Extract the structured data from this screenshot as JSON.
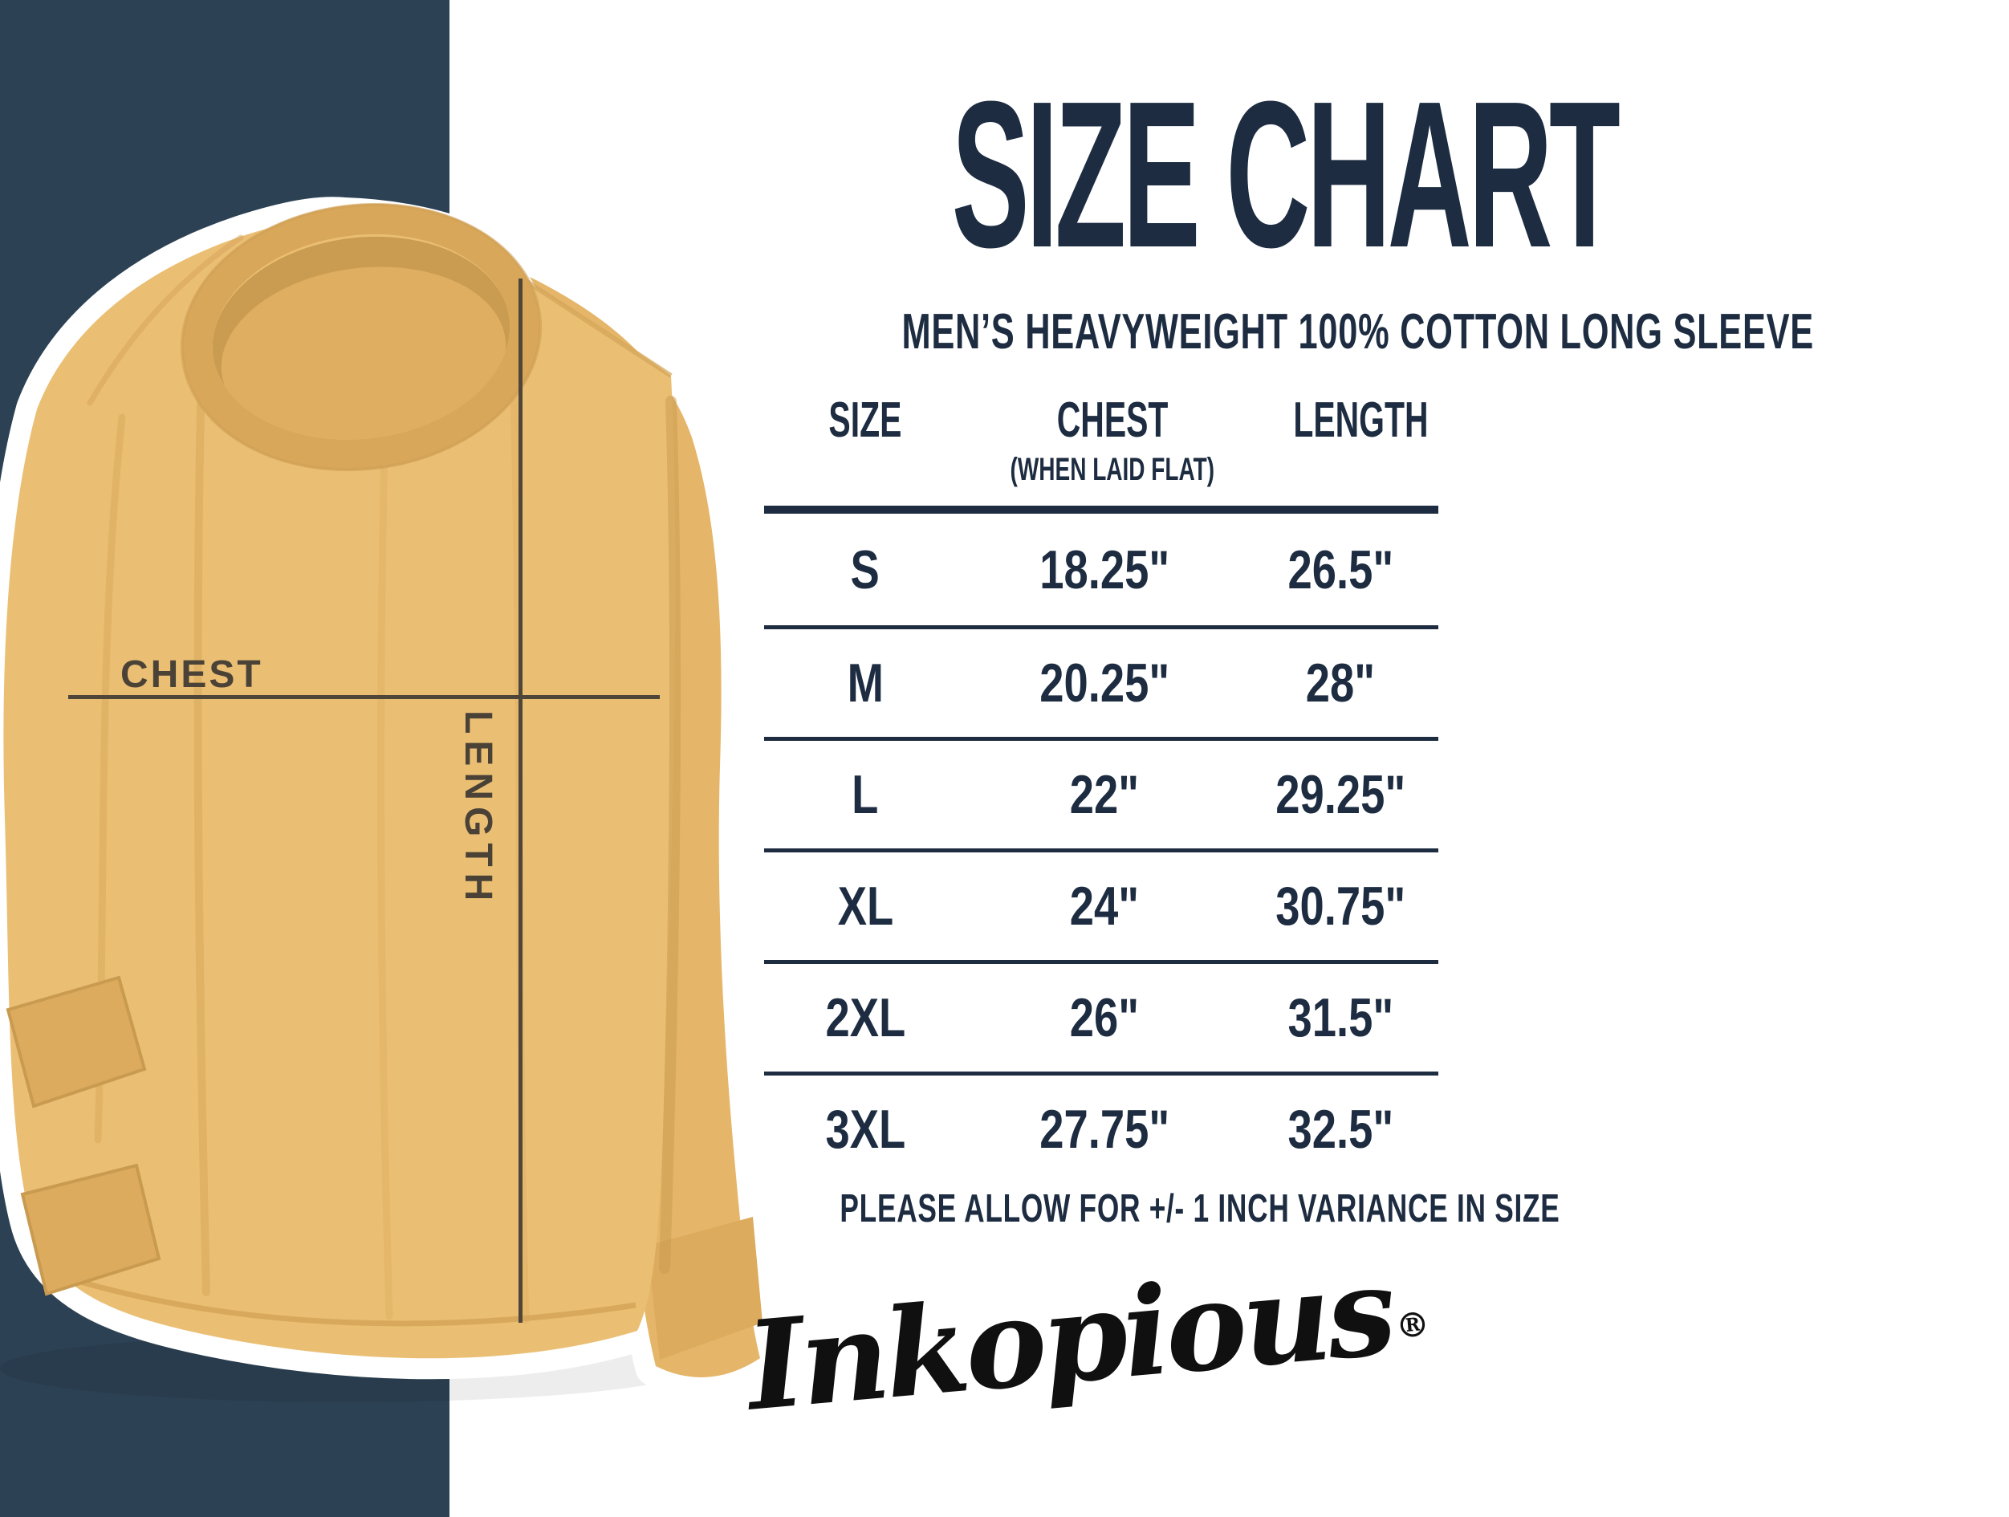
{
  "title": "SIZE CHART",
  "subtitle": "MEN’S HEAVYWEIGHT 100% COTTON LONG SLEEVE",
  "diagram": {
    "chest_label": "CHEST",
    "length_label": "LENGTH"
  },
  "table": {
    "columns": [
      "SIZE",
      "CHEST",
      "LENGTH"
    ],
    "chest_subnote": "(WHEN LAID FLAT)",
    "rows": [
      {
        "size": "S",
        "chest": "18.25\"",
        "length": "26.5\""
      },
      {
        "size": "M",
        "chest": "20.25\"",
        "length": "28\""
      },
      {
        "size": "L",
        "chest": "22\"",
        "length": "29.25\""
      },
      {
        "size": "XL",
        "chest": "24\"",
        "length": "30.75\""
      },
      {
        "size": "2XL",
        "chest": "26\"",
        "length": "31.5\""
      },
      {
        "size": "3XL",
        "chest": "27.75\"",
        "length": "32.5\""
      }
    ]
  },
  "note": "PLEASE ALLOW FOR +/- 1 INCH VARIANCE IN SIZE",
  "brand": {
    "name": "Inkopious",
    "registered": "®"
  },
  "colors": {
    "navy_block": "#2c4153",
    "text_navy": "#1d2c41",
    "shirt": "#eabf74",
    "line": "#4f4538",
    "background": "#ffffff"
  },
  "chart_data": {
    "type": "table",
    "title": "SIZE CHART",
    "subtitle": "MEN'S HEAVYWEIGHT 100% COTTON LONG SLEEVE",
    "columns": [
      "SIZE",
      "CHEST (WHEN LAID FLAT)",
      "LENGTH"
    ],
    "rows": [
      [
        "S",
        "18.25\"",
        "26.5\""
      ],
      [
        "M",
        "20.25\"",
        "28\""
      ],
      [
        "L",
        "22\"",
        "29.25\""
      ],
      [
        "XL",
        "24\"",
        "30.75\""
      ],
      [
        "2XL",
        "26\"",
        "31.5\""
      ],
      [
        "3XL",
        "27.75\"",
        "32.5\""
      ]
    ],
    "note": "PLEASE ALLOW FOR +/- 1 INCH VARIANCE IN SIZE",
    "legend_position": "none",
    "grid": "horizontal-rules"
  }
}
